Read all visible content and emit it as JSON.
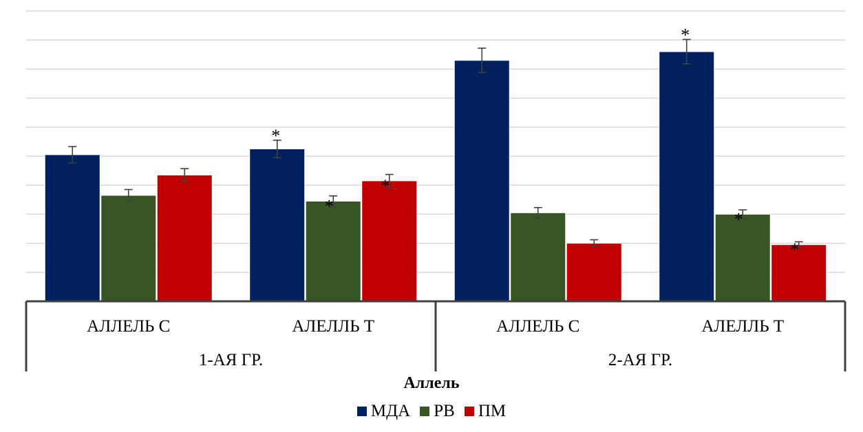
{
  "chart_data": {
    "type": "bar",
    "xlabel": "Аллель",
    "groups": [
      {
        "label": "1-АЯ ГР.",
        "categories": [
          "АЛЛЕЛЬ С",
          "АЛЕЛЛЬ Т"
        ]
      },
      {
        "label": "2-АЯ ГР.",
        "categories": [
          "АЛЛЕЛЬ С",
          "АЛЕЛЛЬ Т"
        ]
      }
    ],
    "categories": [
      "АЛЛЕЛЬ С",
      "АЛЕЛЛЬ Т",
      "АЛЛЕЛЬ С",
      "АЛЕЛЛЬ Т"
    ],
    "ylim": [
      0,
      10
    ],
    "grid": true,
    "legend_position": "bottom",
    "series": [
      {
        "name": "МДА",
        "color": "#002060",
        "values": [
          5.05,
          5.25,
          8.3,
          8.6
        ],
        "errors": [
          0.28,
          0.3,
          0.42,
          0.42
        ],
        "significant": [
          false,
          true,
          false,
          true
        ]
      },
      {
        "name": "РВ",
        "color": "#375623",
        "values": [
          3.65,
          3.45,
          3.05,
          3.0
        ],
        "errors": [
          0.2,
          0.18,
          0.18,
          0.15
        ],
        "significant": [
          false,
          true,
          false,
          true
        ]
      },
      {
        "name": "ПМ",
        "color": "#C00000",
        "values": [
          4.35,
          4.15,
          2.0,
          1.95
        ],
        "errors": [
          0.22,
          0.22,
          0.12,
          0.1
        ],
        "significant": [
          false,
          true,
          false,
          true
        ]
      }
    ],
    "significance_marker": "*"
  }
}
